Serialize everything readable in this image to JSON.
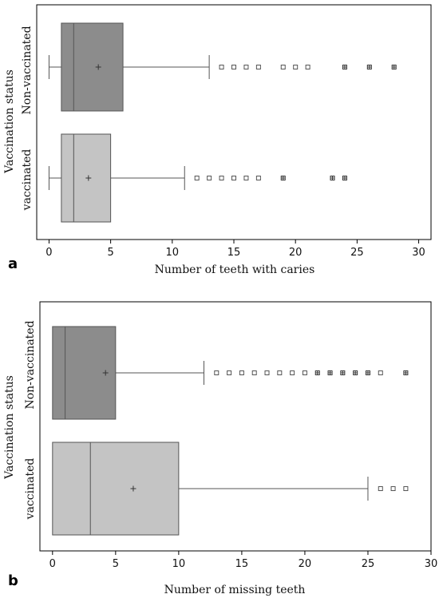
{
  "chart_data": [
    {
      "type": "boxplot",
      "panel_label": "a",
      "xlabel": "Number of teeth with caries",
      "ylabel": "Vaccination status",
      "xlim": [
        -1,
        31
      ],
      "xticks": [
        0,
        5,
        10,
        15,
        20,
        25,
        30
      ],
      "grid": false,
      "series": [
        {
          "name": "Non-vaccinated",
          "color": "#8c8c8c",
          "whisker_low": 0,
          "q1": 1,
          "median": 2,
          "q3": 6,
          "whisker_high": 13,
          "mean": 4,
          "outliers": [
            14,
            15,
            16,
            17,
            19,
            20,
            21
          ],
          "far_outliers": [
            24,
            26,
            28
          ]
        },
        {
          "name": "vaccinated",
          "color": "#c4c4c4",
          "whisker_low": 0,
          "q1": 1,
          "median": 2,
          "q3": 5,
          "whisker_high": 11,
          "mean": 3.2,
          "outliers": [
            12,
            13,
            14,
            15,
            16,
            17
          ],
          "far_outliers": [
            19,
            23,
            24
          ]
        }
      ]
    },
    {
      "type": "boxplot",
      "panel_label": "b",
      "xlabel": "Number of missing teeth",
      "ylabel": "Vaccination status",
      "xlim": [
        -1,
        30
      ],
      "xticks": [
        0,
        5,
        10,
        15,
        20,
        25,
        30
      ],
      "grid": false,
      "series": [
        {
          "name": "Non-vaccinated",
          "color": "#8c8c8c",
          "whisker_low": 0,
          "q1": 0,
          "median": 1,
          "q3": 5,
          "whisker_high": 12,
          "mean": 4.2,
          "outliers": [
            13,
            14,
            15,
            16,
            17,
            18,
            19,
            20,
            26
          ],
          "far_outliers": [
            21,
            22,
            23,
            24,
            25,
            28
          ]
        },
        {
          "name": "vaccinated",
          "color": "#c4c4c4",
          "whisker_low": 0,
          "q1": 0,
          "median": 3,
          "q3": 10,
          "whisker_high": 25,
          "mean": 6.4,
          "outliers": [
            26,
            27,
            28
          ],
          "far_outliers": []
        }
      ]
    }
  ]
}
